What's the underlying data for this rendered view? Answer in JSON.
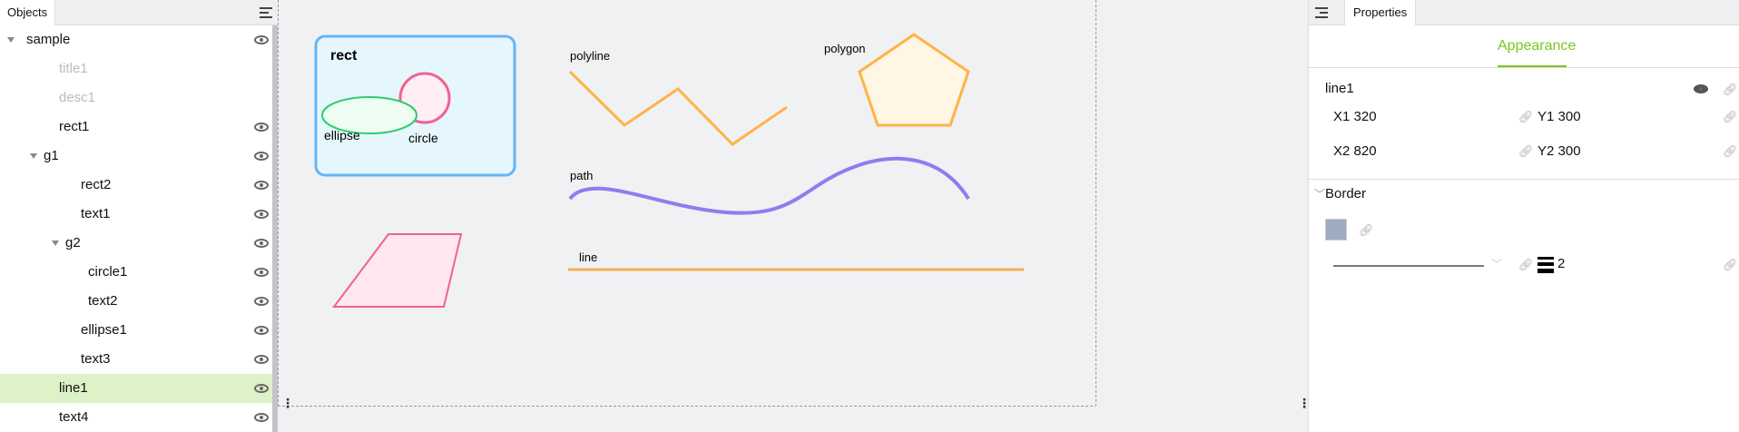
{
  "objects_panel": {
    "tab_label": "Objects",
    "items": [
      {
        "label": "sample",
        "depth": 0,
        "expanded": true,
        "visible_toggle": true,
        "dimmed": false
      },
      {
        "label": "title1",
        "depth": 1,
        "dimmed": true,
        "visible_toggle": false
      },
      {
        "label": "desc1",
        "depth": 1,
        "dimmed": true,
        "visible_toggle": false
      },
      {
        "label": "rect1",
        "depth": 1,
        "visible_toggle": true
      },
      {
        "label": "g1",
        "depth": 1,
        "expanded": true,
        "visible_toggle": true
      },
      {
        "label": "rect2",
        "depth": 2,
        "visible_toggle": true
      },
      {
        "label": "text1",
        "depth": 2,
        "visible_toggle": true
      },
      {
        "label": "g2",
        "depth": 2,
        "expanded": true,
        "visible_toggle": true
      },
      {
        "label": "circle1",
        "depth": 3,
        "visible_toggle": true
      },
      {
        "label": "text2",
        "depth": 3,
        "visible_toggle": true
      },
      {
        "label": "ellipse1",
        "depth": 2,
        "visible_toggle": true
      },
      {
        "label": "text3",
        "depth": 2,
        "visible_toggle": true
      },
      {
        "label": "line1",
        "depth": 1,
        "visible_toggle": true,
        "selected": true
      },
      {
        "label": "text4",
        "depth": 1,
        "visible_toggle": true
      }
    ],
    "selected_color": "#def2c8"
  },
  "canvas": {
    "labels": {
      "rect": "rect",
      "ellipse": "ellipse",
      "circle": "circle",
      "polyline": "polyline",
      "polygon": "polygon",
      "path": "path",
      "line": "line"
    },
    "colors": {
      "rect_stroke": "#64b5f6",
      "rect_fill": "#e6f6fd",
      "circle": "#f06292",
      "ellipse": "#2ecc71",
      "polyline": "#ffb347",
      "polygon": "#ffb347",
      "path": "#8e7cf0",
      "parallelogram": "#f06292"
    }
  },
  "properties_panel": {
    "tab_label": "Properties",
    "section_tab": "Appearance",
    "accent": "#7cc520",
    "object_name": "line1",
    "fields": [
      {
        "label": "X1",
        "value": "320"
      },
      {
        "label": "Y1",
        "value": "300"
      },
      {
        "label": "X2",
        "value": "820"
      },
      {
        "label": "Y2",
        "value": "300"
      }
    ],
    "border": {
      "title": "Border",
      "color": "#9eabc1",
      "width": "2"
    }
  }
}
